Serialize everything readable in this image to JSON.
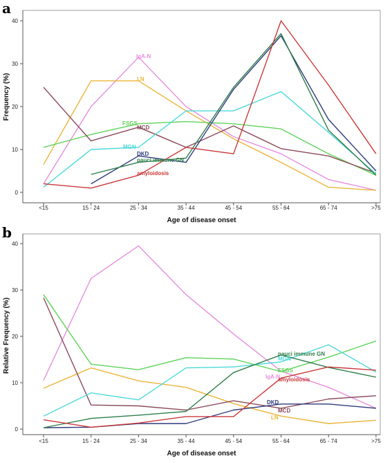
{
  "chart_data": [
    {
      "panel": "a",
      "type": "line",
      "xlabel": "Age of disease onset",
      "ylabel": "Frequency (%)",
      "categories": [
        "<15",
        "15 - 24",
        "25 - 34",
        "35 - 44",
        "45 - 54",
        "55 - 64",
        "65 - 74",
        ">75"
      ],
      "ylim": [
        0,
        40
      ],
      "yticks": [
        0,
        10,
        20,
        30,
        40
      ],
      "grid": false,
      "series": [
        {
          "name": "IgA-N",
          "color": "#e48fdc",
          "values": [
            2,
            20,
            31.5,
            20,
            13,
            9,
            3,
            0.5
          ]
        },
        {
          "name": "LN",
          "color": "#e9b53a",
          "values": [
            6.5,
            26,
            26,
            19,
            12.5,
            7,
            1.2,
            0.5
          ]
        },
        {
          "name": "FSGS",
          "color": "#5fd35a",
          "values": [
            10.5,
            13.5,
            16,
            16.5,
            16,
            14.8,
            9,
            4
          ]
        },
        {
          "name": "MCD",
          "color": "#8a4a5a",
          "values": [
            24.5,
            12,
            15.2,
            10.5,
            15.5,
            10.2,
            8.5,
            4.5
          ]
        },
        {
          "name": "MGN",
          "color": "#4fd8d8",
          "values": [
            1.2,
            10,
            10.5,
            19,
            19,
            23.5,
            14,
            4.3
          ]
        },
        {
          "name": "DKD",
          "color": "#2f3a7a",
          "values": [
            null,
            2,
            8.5,
            7,
            24,
            36.5,
            17,
            5
          ]
        },
        {
          "name": "pauci immune GN",
          "color": "#2e7d4a",
          "values": [
            null,
            4.2,
            7,
            8,
            24.5,
            37,
            14.5,
            4
          ]
        },
        {
          "name": "amyloidosis",
          "color": "#c8383a",
          "values": [
            2,
            1,
            4,
            10.5,
            9,
            40,
            25,
            9
          ]
        }
      ],
      "label_text": {
        "iga": "IgA-N",
        "ln": "LN",
        "fsgs": "FSGS",
        "mcd": "MCD",
        "mgn": "MGN",
        "dkd": "DKD",
        "pauci": "pauci immune GN",
        "amyl": "amyloidosis"
      }
    },
    {
      "panel": "b",
      "type": "line",
      "xlabel": "Age of disease onset",
      "ylabel": "Relative Frequency (%)",
      "categories": [
        "<15",
        "15 - 24",
        "25 - 34",
        "35 - 44",
        "45 - 54",
        "55 - 64",
        "65 - 74",
        ">75"
      ],
      "ylim": [
        0,
        40
      ],
      "yticks": [
        0,
        10,
        20,
        30,
        40
      ],
      "grid": false,
      "series": [
        {
          "name": "IgA-N",
          "color": "#e48fdc",
          "values": [
            10.5,
            32.5,
            39.5,
            29,
            20.5,
            12.5,
            9,
            4.5
          ]
        },
        {
          "name": "LN",
          "color": "#e9b53a",
          "values": [
            8.8,
            13.2,
            10.4,
            9,
            5.5,
            2.8,
            1.2,
            1.9
          ]
        },
        {
          "name": "FSGS",
          "color": "#5fd35a",
          "values": [
            29,
            14,
            12.8,
            15.4,
            15.1,
            12.4,
            15.5,
            19
          ]
        },
        {
          "name": "MCD",
          "color": "#8a4a5a",
          "values": [
            28.3,
            5.2,
            5,
            4.1,
            6.1,
            4.5,
            6.5,
            7.2
          ]
        },
        {
          "name": "MGN",
          "color": "#4fd8d8",
          "values": [
            2.8,
            7.8,
            6.3,
            13.2,
            13.4,
            14.5,
            18.2,
            12.3
          ]
        },
        {
          "name": "DKD",
          "color": "#2f3a7a",
          "values": [
            0.3,
            0.4,
            1.2,
            1.2,
            4.1,
            5.4,
            5.4,
            4.5
          ]
        },
        {
          "name": "pauci immune GN",
          "color": "#2e7d4a",
          "values": [
            0.3,
            2.3,
            3,
            3.8,
            12.2,
            16,
            13.3,
            11.2
          ]
        },
        {
          "name": "amyloidosis",
          "color": "#c8383a",
          "values": [
            2,
            0.4,
            1.3,
            2.7,
            2.7,
            11,
            13.4,
            12.7
          ]
        }
      ],
      "label_text": {
        "iga": "IgA-N",
        "ln": "LN",
        "fsgs": "FSGS",
        "mcd": "MCD",
        "mgn": "MGN",
        "dkd": "DKD",
        "pauci": "pauci immune GN",
        "amyl": "amyloidosis"
      }
    }
  ]
}
